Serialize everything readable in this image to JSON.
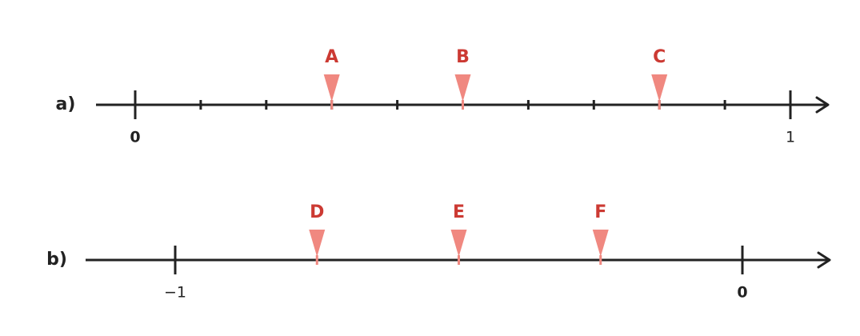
{
  "lines": [
    {
      "label": "a)",
      "major_ticks": [
        0,
        1
      ],
      "minor_ticks": [
        0.1,
        0.2,
        0.3,
        0.4,
        0.5,
        0.6,
        0.7,
        0.8,
        0.9
      ],
      "points": [
        {
          "label": "A",
          "value": 0.3
        },
        {
          "label": "B",
          "value": 0.5
        },
        {
          "label": "C",
          "value": 0.8
        }
      ]
    },
    {
      "label": "b)",
      "major_ticks": [
        {
          "value": -1,
          "label": "−1"
        },
        0
      ],
      "minor_ticks": [],
      "points": [
        {
          "label": "D",
          "value": -0.75
        },
        {
          "label": "E",
          "value": -0.5
        },
        {
          "label": "F",
          "value": -0.25
        }
      ]
    }
  ]
}
